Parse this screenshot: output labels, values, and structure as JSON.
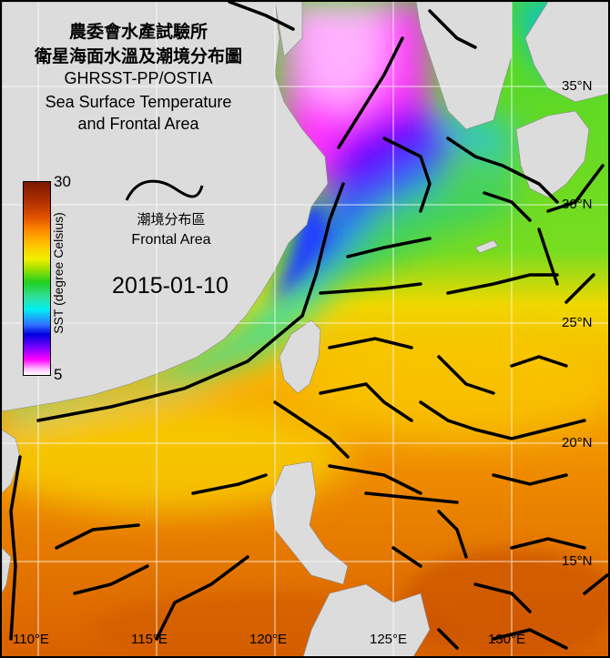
{
  "title": {
    "zh_line1": "農委會水產試驗所",
    "zh_line2": "衛星海面水溫及潮境分布圖",
    "en_line1": "GHRSST-PP/OSTIA",
    "en_line2": "Sea Surface Temperature",
    "en_line3": "and Frontal Area"
  },
  "colorbar": {
    "label": "SST (degree Celsius)",
    "min": "5",
    "max": "30",
    "colors": [
      "#7a1800",
      "#e05000",
      "#ffc000",
      "#f0f000",
      "#20d020",
      "#00f0f0",
      "#0000e0",
      "#ff00ff",
      "#ffffff"
    ]
  },
  "legend": {
    "zh": "潮境分布區",
    "en": "Frontal Area"
  },
  "date": "2015-01-10",
  "lat_labels": [
    "35°N",
    "30°N",
    "25°N",
    "20°N",
    "15°N"
  ],
  "lon_labels": [
    "110°E",
    "115°E",
    "120°E",
    "125°E",
    "130°E"
  ],
  "colors": {
    "land": "#dcdcdc",
    "front": "#000000",
    "grid": "#ffffff"
  }
}
